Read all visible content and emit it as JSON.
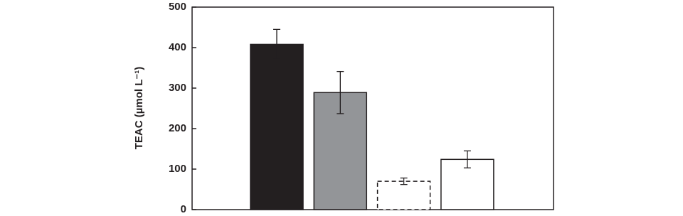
{
  "chart_data": {
    "type": "bar",
    "ylabel": "TEAC (µmol L⁻¹)",
    "values": [
      408,
      289,
      70,
      124
    ],
    "errors": [
      37,
      52,
      8,
      21
    ],
    "colors": [
      "#231f20",
      "#939598",
      "#ffffff",
      "#ffffff"
    ],
    "bar_styles": [
      "solid",
      "solid",
      "dashed",
      "solid"
    ],
    "ylim": [
      0,
      500
    ],
    "yticks": [
      0,
      100,
      200,
      300,
      400,
      500
    ]
  }
}
